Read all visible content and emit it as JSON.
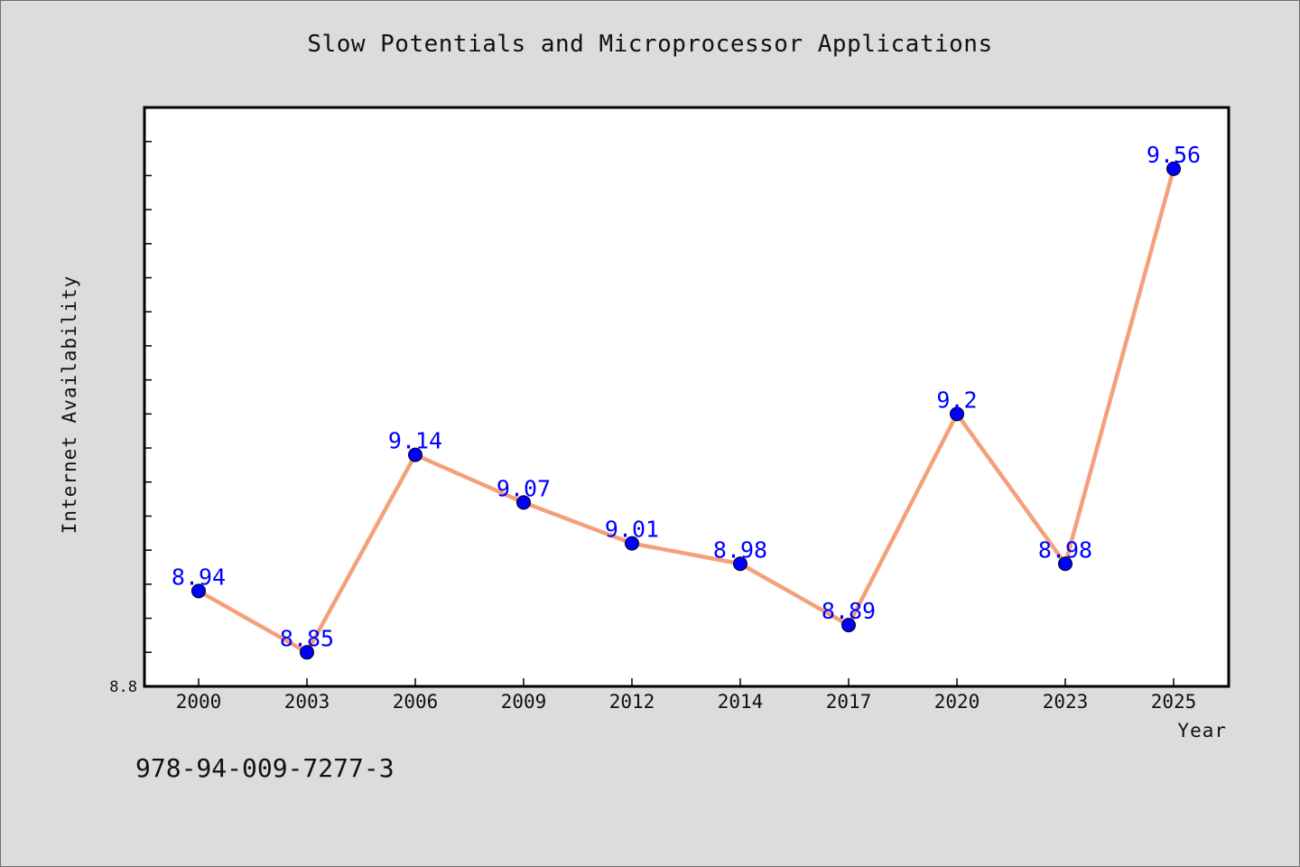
{
  "chart_data": {
    "type": "line",
    "title": "Slow Potentials and Microprocessor Applications",
    "xlabel": "Year",
    "ylabel": "Internet Availability",
    "categories": [
      "2000",
      "2003",
      "2006",
      "2009",
      "2012",
      "2014",
      "2017",
      "2020",
      "2023",
      "2025"
    ],
    "series": [
      {
        "values": [
          8.94,
          8.85,
          9.14,
          9.07,
          9.01,
          8.98,
          8.89,
          9.2,
          8.98,
          9.56
        ],
        "labels": [
          "8.94",
          "8.85",
          "9.14",
          "9.07",
          "9.01",
          "8.98",
          "8.89",
          "9.2",
          "8.98",
          "9.56"
        ]
      }
    ],
    "ylim": [
      8.8,
      9.65
    ],
    "yticklabels": [
      "8.8"
    ],
    "colors": {
      "line": "#f4a07a",
      "marker": "#0000ff",
      "data_label": "#0000ff",
      "plot_background": "#ffffff",
      "figure_background": "#dcdcdc"
    },
    "grid": false,
    "legend": "none"
  },
  "footer": {
    "code": "978-94-009-7277-3"
  }
}
